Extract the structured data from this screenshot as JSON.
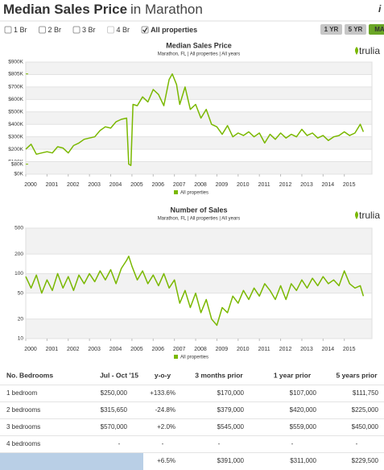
{
  "header": {
    "title_bold": "Median Sales Price",
    "title_rest": "in Marathon",
    "info_icon": "i"
  },
  "filters": [
    {
      "label": "1 Br",
      "checked": false,
      "disabled": false
    },
    {
      "label": "2 Br",
      "checked": false,
      "disabled": false
    },
    {
      "label": "3 Br",
      "checked": false,
      "disabled": false
    },
    {
      "label": "4 Br",
      "checked": false,
      "disabled": true
    },
    {
      "label": "All properties",
      "checked": true,
      "disabled": false
    }
  ],
  "ranges": {
    "buttons": [
      "1 YR",
      "5 YR",
      "MA"
    ],
    "active": 2
  },
  "chart_data": [
    {
      "type": "line",
      "title": "Median Sales Price",
      "subtitle": "Marathon, FL | All properties | All years",
      "brand": "trulia",
      "x": [
        2000,
        2000.25,
        2000.5,
        2000.75,
        2001,
        2001.25,
        2001.5,
        2001.75,
        2002,
        2002.25,
        2002.5,
        2002.75,
        2003,
        2003.25,
        2003.5,
        2003.75,
        2004,
        2004.25,
        2004.5,
        2004.75,
        2004.85,
        2004.95,
        2005.05,
        2005.25,
        2005.5,
        2005.75,
        2006,
        2006.25,
        2006.5,
        2006.75,
        2006.9,
        2007.1,
        2007.25,
        2007.5,
        2007.75,
        2008,
        2008.25,
        2008.5,
        2008.75,
        2009,
        2009.25,
        2009.5,
        2009.75,
        2010,
        2010.25,
        2010.5,
        2010.75,
        2011,
        2011.25,
        2011.5,
        2011.75,
        2012,
        2012.25,
        2012.5,
        2012.75,
        2013,
        2013.25,
        2013.5,
        2013.75,
        2014,
        2014.25,
        2014.5,
        2014.75,
        2015,
        2015.25,
        2015.5,
        2015.75,
        2015.9
      ],
      "series": [
        {
          "name": "All properties",
          "color": "#7ab800",
          "values": [
            200000,
            240000,
            160000,
            170000,
            180000,
            170000,
            220000,
            210000,
            170000,
            230000,
            250000,
            280000,
            290000,
            300000,
            350000,
            380000,
            370000,
            420000,
            440000,
            450000,
            80000,
            70000,
            560000,
            550000,
            620000,
            580000,
            680000,
            640000,
            550000,
            760000,
            805000,
            720000,
            560000,
            700000,
            520000,
            560000,
            450000,
            520000,
            400000,
            380000,
            320000,
            390000,
            300000,
            330000,
            310000,
            340000,
            300000,
            330000,
            250000,
            320000,
            280000,
            330000,
            290000,
            320000,
            300000,
            360000,
            310000,
            330000,
            290000,
            310000,
            270000,
            300000,
            310000,
            340000,
            310000,
            330000,
            400000,
            340000
          ]
        }
      ],
      "xlim": [
        2000,
        2016.3
      ],
      "xticks": [
        2000,
        2001,
        2002,
        2003,
        2004,
        2005,
        2006,
        2007,
        2008,
        2009,
        2010,
        2011,
        2012,
        2013,
        2014,
        2015
      ],
      "ylim": [
        0,
        900000
      ],
      "yticks": [
        {
          "value": 0,
          "label": "$0K"
        },
        {
          "value": 100000,
          "label": "$100K"
        },
        {
          "value": 200000,
          "label": "$200K"
        },
        {
          "value": 300000,
          "label": "$300K"
        },
        {
          "value": 400000,
          "label": "$400K"
        },
        {
          "value": 500000,
          "label": "$500K"
        },
        {
          "value": 600000,
          "label": "$600K"
        },
        {
          "value": 700000,
          "label": "$700K"
        },
        {
          "value": 800000,
          "label": "$800K"
        },
        {
          "value": 900000,
          "label": "$900K"
        }
      ],
      "highlight_ticks": [
        {
          "value": 805000,
          "label": "$805K"
        },
        {
          "value": 80000,
          "label": "$80K"
        }
      ],
      "highlight_color": "#7ab800",
      "log_scale": false,
      "grid": true
    },
    {
      "type": "line",
      "title": "Number of Sales",
      "subtitle": "Marathon, FL | All properties | All years",
      "brand": "trulia",
      "x": [
        2000,
        2000.25,
        2000.5,
        2000.75,
        2001,
        2001.25,
        2001.5,
        2001.75,
        2002,
        2002.25,
        2002.5,
        2002.75,
        2003,
        2003.25,
        2003.5,
        2003.75,
        2004,
        2004.25,
        2004.5,
        2004.75,
        2004.85,
        2005,
        2005.25,
        2005.5,
        2005.75,
        2006,
        2006.25,
        2006.5,
        2006.75,
        2007,
        2007.25,
        2007.5,
        2007.75,
        2008,
        2008.25,
        2008.5,
        2008.75,
        2009,
        2009.25,
        2009.5,
        2009.75,
        2010,
        2010.25,
        2010.5,
        2010.75,
        2011,
        2011.25,
        2011.5,
        2011.75,
        2012,
        2012.25,
        2012.5,
        2012.75,
        2013,
        2013.25,
        2013.5,
        2013.75,
        2014,
        2014.25,
        2014.5,
        2014.75,
        2015,
        2015.25,
        2015.5,
        2015.75,
        2015.9
      ],
      "series": [
        {
          "name": "All properties",
          "color": "#7ab800",
          "values": [
            90,
            60,
            95,
            50,
            80,
            55,
            100,
            60,
            90,
            55,
            95,
            70,
            100,
            75,
            110,
            80,
            115,
            70,
            120,
            160,
            185,
            130,
            80,
            110,
            70,
            95,
            65,
            100,
            60,
            80,
            35,
            55,
            30,
            50,
            25,
            40,
            20,
            16,
            30,
            25,
            45,
            35,
            55,
            40,
            60,
            45,
            70,
            55,
            40,
            65,
            40,
            70,
            55,
            80,
            60,
            85,
            65,
            90,
            70,
            80,
            65,
            110,
            70,
            60,
            65,
            45
          ]
        }
      ],
      "xlim": [
        2000,
        2016.3
      ],
      "xticks": [
        2000,
        2001,
        2002,
        2003,
        2004,
        2005,
        2006,
        2007,
        2008,
        2009,
        2010,
        2011,
        2012,
        2013,
        2014,
        2015
      ],
      "ylim": [
        10,
        500
      ],
      "yticks": [
        10,
        20,
        50,
        100,
        200,
        500
      ],
      "log_scale": true,
      "grid": true
    }
  ],
  "table": {
    "columns": [
      "No. Bedrooms",
      "Jul - Oct '15",
      "y-o-y",
      "3 months prior",
      "1 year prior",
      "5 years prior"
    ],
    "rows": [
      [
        "1 bedroom",
        "$250,000",
        "+133.6%",
        "$170,000",
        "$107,000",
        "$111,750"
      ],
      [
        "2 bedrooms",
        "$315,650",
        "-24.8%",
        "$379,000",
        "$420,000",
        "$225,000"
      ],
      [
        "3 bedrooms",
        "$570,000",
        "+2.0%",
        "$545,000",
        "$559,000",
        "$450,000"
      ],
      [
        "4 bedrooms",
        "-",
        "-",
        "-",
        "-",
        "-"
      ],
      [
        null,
        null,
        "+6.5%",
        "$391,000",
        "$311,000",
        "$229,500"
      ]
    ]
  }
}
